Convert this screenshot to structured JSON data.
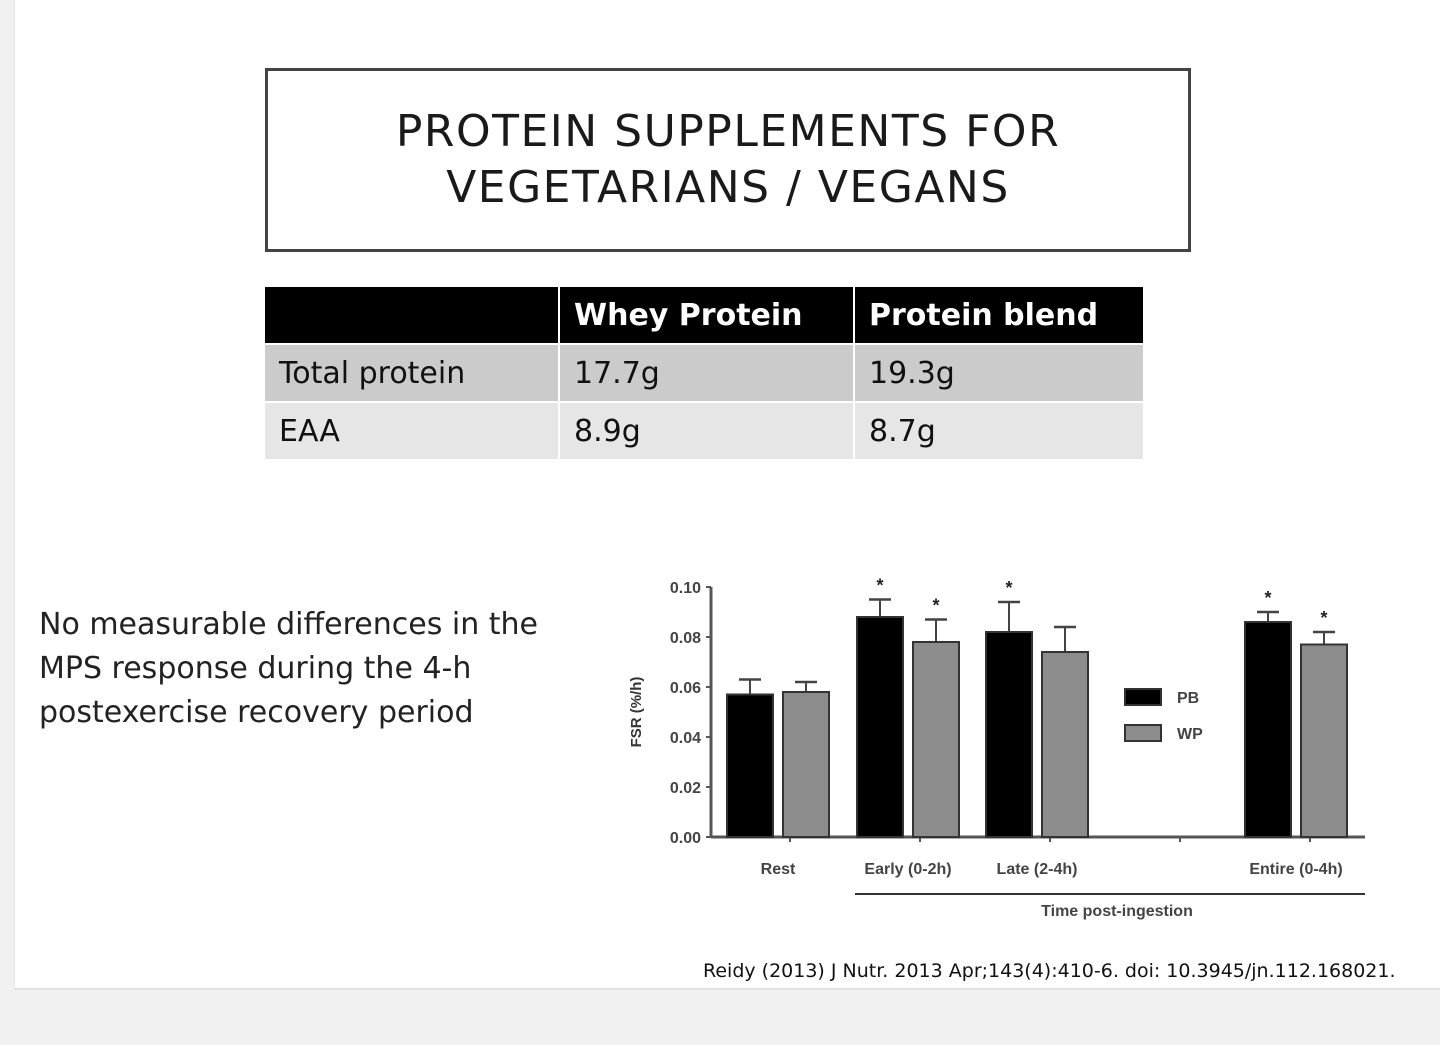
{
  "slide": {
    "title": "PROTEIN SUPPLEMENTS FOR\nVEGETARIANS / VEGANS",
    "table": {
      "headers": [
        "",
        "Whey Protein",
        "Protein blend"
      ],
      "rows": [
        [
          "Total protein",
          "17.7g",
          "19.3g"
        ],
        [
          "EAA",
          "8.9g",
          "8.7g"
        ]
      ]
    },
    "body_text": "No measurable differences in the\nMPS response during the 4-h\npostexercise recovery period",
    "citation": "Reidy (2013) J Nutr. 2013 Apr;143(4):410-6. doi: 10.3945/jn.112.168021."
  },
  "chart_data": {
    "type": "bar",
    "title": "",
    "xlabel": "Time post-ingestion",
    "ylabel": "FSR (%/h)",
    "ylim": [
      0,
      0.1
    ],
    "yticks": [
      "0.00",
      "0.02",
      "0.04",
      "0.06",
      "0.08",
      "0.10"
    ],
    "categories": [
      "Rest",
      "Early (0-2h)",
      "Late (2-4h)",
      "Entire (0-4h)"
    ],
    "series": [
      {
        "name": "PB",
        "color": "#000000",
        "values": [
          0.057,
          0.088,
          0.082,
          0.086
        ],
        "error_upper": [
          0.063,
          0.095,
          0.094,
          0.09
        ],
        "significant": [
          false,
          true,
          true,
          true
        ]
      },
      {
        "name": "WP",
        "color": "#8c8c8c",
        "values": [
          0.058,
          0.078,
          0.074,
          0.077
        ],
        "error_upper": [
          0.062,
          0.087,
          0.084,
          0.082
        ],
        "significant": [
          false,
          true,
          false,
          true
        ]
      }
    ],
    "significance_marker": "*",
    "legend": {
      "position": "right-center",
      "entries": [
        "PB",
        "WP"
      ]
    },
    "grid": false,
    "bracket_label": "Time post-ingestion"
  }
}
